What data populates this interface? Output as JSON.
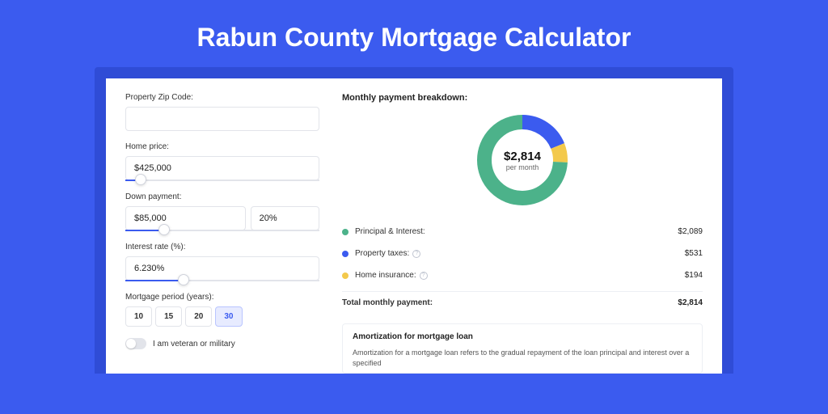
{
  "page": {
    "title": "Rabun County Mortgage Calculator",
    "background_color": "#3b5bef",
    "card_border_color": "#2f4cd6"
  },
  "form": {
    "zip": {
      "label": "Property Zip Code:",
      "value": ""
    },
    "home_price": {
      "label": "Home price:",
      "value": "$425,000",
      "slider_pct": 8
    },
    "down_payment": {
      "label": "Down payment:",
      "amount": "$85,000",
      "percent": "20%",
      "slider_pct": 20
    },
    "interest_rate": {
      "label": "Interest rate (%):",
      "value": "6.230%",
      "slider_pct": 30
    },
    "mortgage_period": {
      "label": "Mortgage period (years):",
      "options": [
        "10",
        "15",
        "20",
        "30"
      ],
      "selected": "30"
    },
    "veteran": {
      "label": "I am veteran or military",
      "value": false
    }
  },
  "breakdown": {
    "title": "Monthly payment breakdown:",
    "donut": {
      "value": "$2,814",
      "sub": "per month",
      "slices": [
        {
          "label": "Principal & Interest:",
          "value": "$2,089",
          "pct": 74.2,
          "color": "#4cb28a"
        },
        {
          "label": "Property taxes:",
          "value": "$531",
          "pct": 18.9,
          "color": "#3b5bef",
          "info": true
        },
        {
          "label": "Home insurance:",
          "value": "$194",
          "pct": 6.9,
          "color": "#f3c94c",
          "info": true
        }
      ],
      "track_color": "#eef0f5",
      "thickness": 18
    },
    "total": {
      "label": "Total monthly payment:",
      "value": "$2,814"
    }
  },
  "amortization": {
    "title": "Amortization for mortgage loan",
    "text": "Amortization for a mortgage loan refers to the gradual repayment of the loan principal and interest over a specified"
  }
}
